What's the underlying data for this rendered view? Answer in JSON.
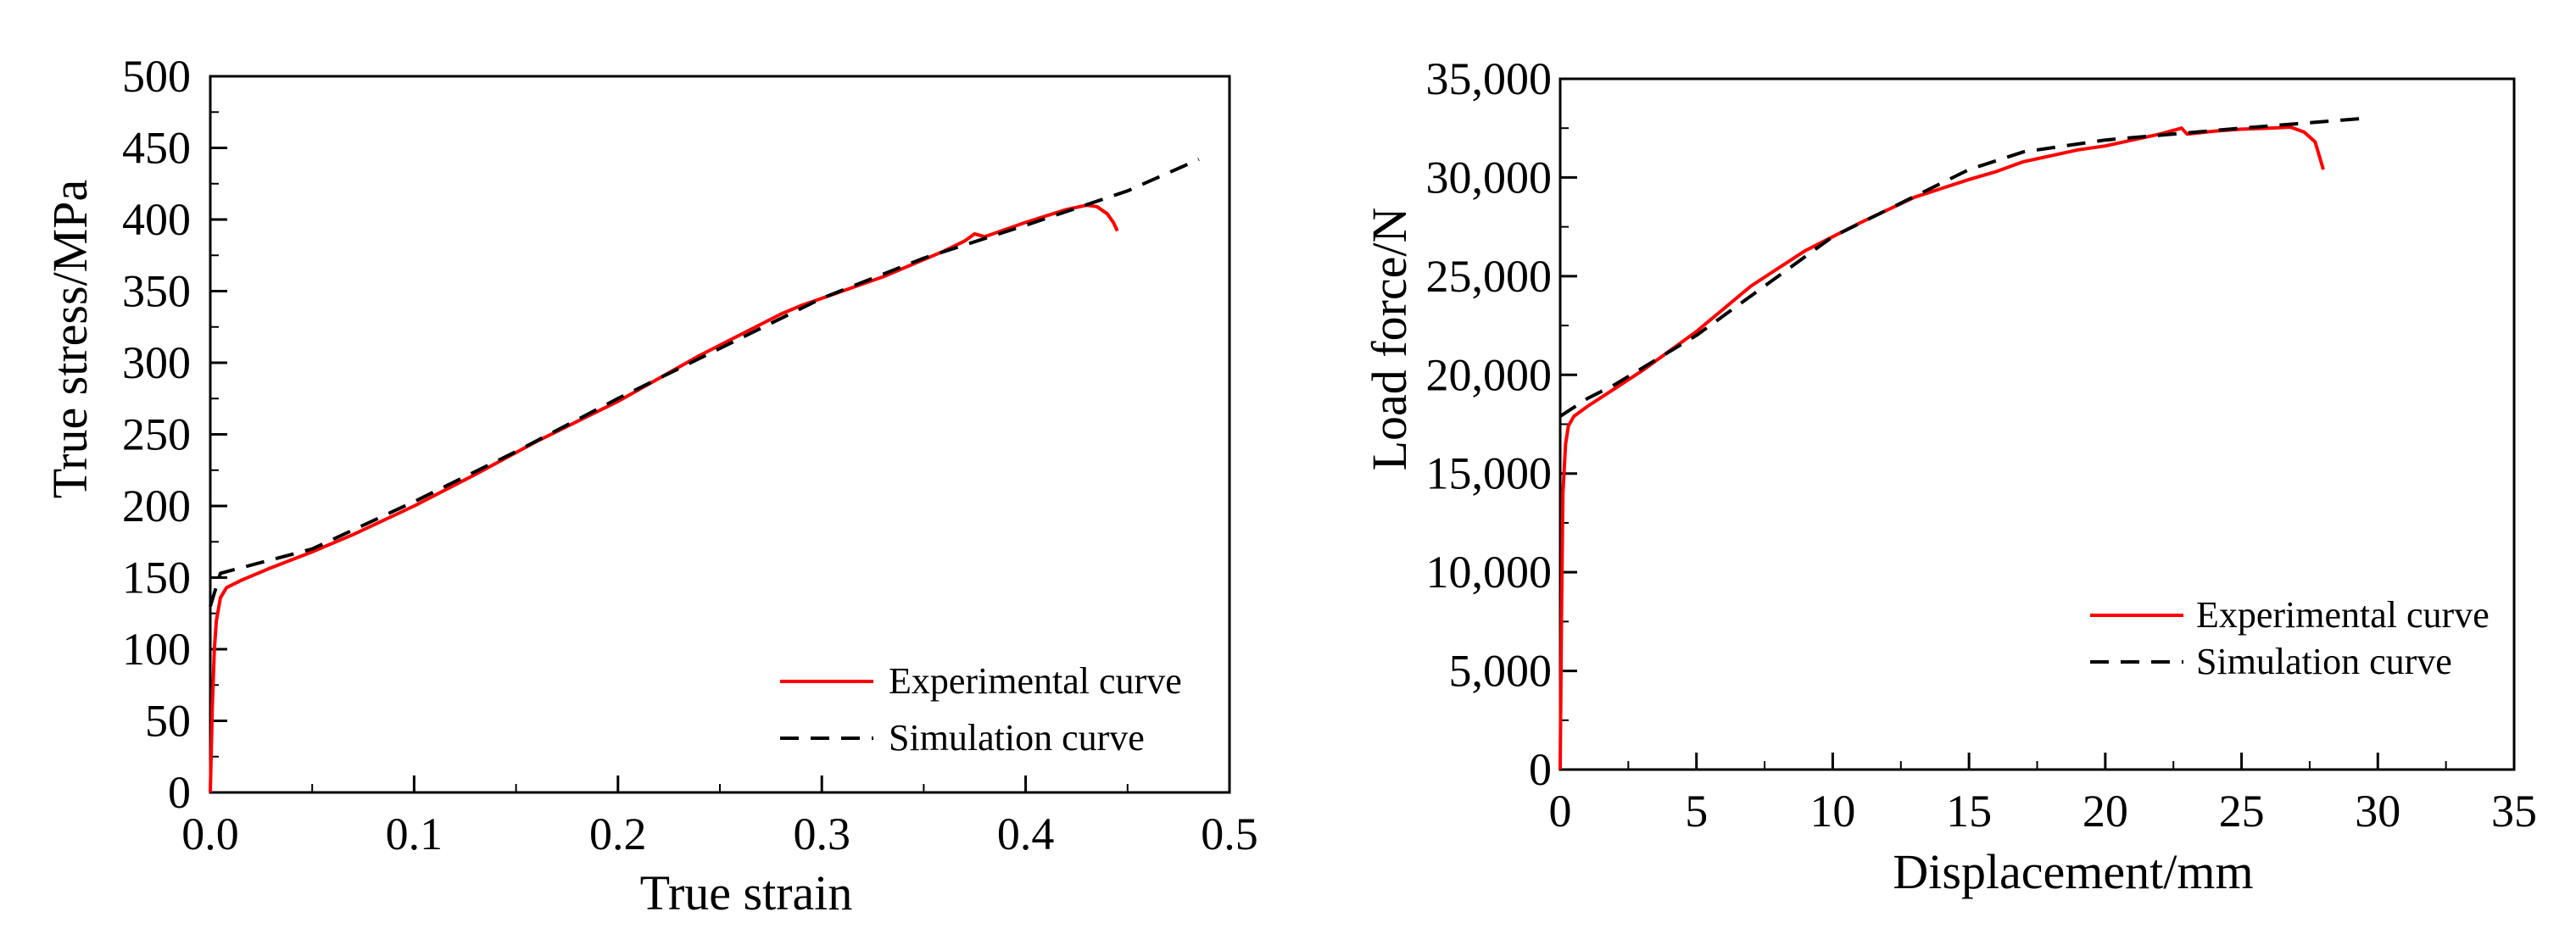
{
  "chart_data": [
    {
      "type": "line",
      "title": "",
      "xlabel": "True strain",
      "ylabel": "True stress/MPa",
      "xlim": [
        0,
        0.5
      ],
      "ylim": [
        0,
        500
      ],
      "xticks": [
        0,
        0.1,
        0.2,
        0.3,
        0.4,
        0.5
      ],
      "xtick_labels": [
        "0.0",
        "0.1",
        "0.2",
        "0.3",
        "0.4",
        "0.5"
      ],
      "yticks": [
        0,
        50,
        100,
        150,
        200,
        250,
        300,
        350,
        400,
        450,
        500
      ],
      "ytick_labels": [
        "0",
        "50",
        "100",
        "150",
        "200",
        "250",
        "300",
        "350",
        "400",
        "450",
        "500"
      ],
      "grid": false,
      "legend_position": "bottom-right",
      "series": [
        {
          "name": "Experimental curve",
          "color": "#ff0000",
          "style": "solid",
          "x": [
            0,
            0.001,
            0.002,
            0.003,
            0.005,
            0.008,
            0.015,
            0.03,
            0.05,
            0.07,
            0.1,
            0.13,
            0.16,
            0.2,
            0.24,
            0.28,
            0.29,
            0.3,
            0.33,
            0.36,
            0.37,
            0.375,
            0.38,
            0.4,
            0.42,
            0.43,
            0.435,
            0.44,
            0.443,
            0.445
          ],
          "y": [
            0,
            60,
            100,
            120,
            136,
            143,
            148,
            157,
            168,
            180,
            200,
            222,
            245,
            273,
            305,
            334,
            340,
            345,
            360,
            378,
            385,
            390,
            388,
            398,
            407,
            410,
            409,
            404,
            398,
            392
          ]
        },
        {
          "name": "Simulation curve",
          "color": "#000000",
          "style": "dashed",
          "x": [
            0,
            0.005,
            0.05,
            0.1,
            0.15,
            0.2,
            0.25,
            0.3,
            0.35,
            0.4,
            0.45,
            0.485
          ],
          "y": [
            130,
            153,
            170,
            203,
            238,
            275,
            310,
            345,
            373,
            396,
            420,
            442
          ]
        }
      ]
    },
    {
      "type": "line",
      "title": "",
      "xlabel": "Displacement/mm",
      "ylabel": "Load force/N",
      "xlim": [
        0,
        35
      ],
      "ylim": [
        0,
        35000
      ],
      "xticks": [
        0,
        5,
        10,
        15,
        20,
        25,
        30,
        35
      ],
      "xtick_labels": [
        "0",
        "5",
        "10",
        "15",
        "20",
        "25",
        "30",
        "35"
      ],
      "yticks": [
        0,
        5000,
        10000,
        15000,
        20000,
        25000,
        30000,
        35000
      ],
      "ytick_labels": [
        "0",
        "5,000",
        "10,000",
        "15,000",
        "20,000",
        "25,000",
        "30,000",
        "35,000"
      ],
      "grid": false,
      "legend_position": "right",
      "series": [
        {
          "name": "Experimental curve",
          "color": "#ff0000",
          "style": "solid",
          "x": [
            0,
            0.05,
            0.1,
            0.2,
            0.3,
            0.5,
            1,
            2,
            3,
            5,
            7,
            9,
            11,
            13,
            15,
            16,
            17,
            18,
            19,
            20,
            21,
            22,
            22.8,
            23,
            24,
            25,
            26,
            26.8,
            27.3,
            27.7,
            28
          ],
          "y": [
            0,
            8000,
            14000,
            16500,
            17400,
            17900,
            18400,
            19300,
            20200,
            22200,
            24500,
            26300,
            27700,
            29000,
            29900,
            30300,
            30800,
            31100,
            31400,
            31600,
            31900,
            32200,
            32500,
            32200,
            32350,
            32450,
            32500,
            32550,
            32300,
            31800,
            30400
          ]
        },
        {
          "name": "Simulation curve",
          "color": "#000000",
          "style": "dashed",
          "x": [
            0,
            1,
            2,
            5,
            10,
            15,
            17,
            20,
            25,
            29.5
          ],
          "y": [
            17900,
            18800,
            19500,
            22000,
            27000,
            30400,
            31300,
            31900,
            32500,
            33000
          ]
        }
      ]
    }
  ]
}
